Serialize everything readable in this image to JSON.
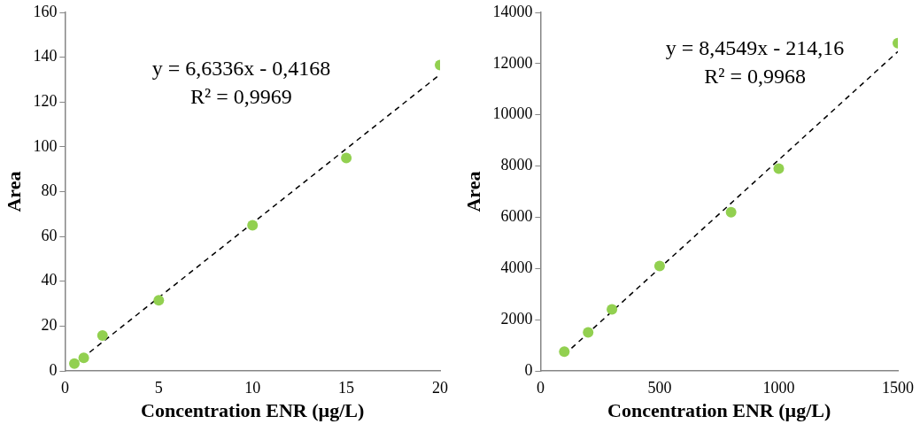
{
  "chart_data": [
    {
      "type": "scatter",
      "xlabel": "Concentration ENR (µg/L)",
      "ylabel": "Area",
      "xlim": [
        0,
        20
      ],
      "xticks": [
        0,
        5,
        10,
        15,
        20
      ],
      "ylim": [
        0,
        160
      ],
      "yticks": [
        0,
        20,
        40,
        60,
        80,
        100,
        120,
        140,
        160
      ],
      "grid": false,
      "legend": false,
      "marker": "circle",
      "annotations": [
        "y = 6,6336x - 0,4168",
        "R² = 0,9969"
      ],
      "series": [
        {
          "color": "#92d050",
          "x": [
            0.5,
            1,
            2,
            5,
            10,
            15,
            20
          ],
          "values": [
            3.3,
            5.8,
            15.8,
            31.5,
            65,
            95,
            136.5
          ]
        },
        {
          "type": "line",
          "color": "#000000",
          "line_style": "dashed",
          "marker": "none",
          "x": [
            0.5,
            20
          ],
          "values": [
            2.9,
            132.3
          ]
        }
      ]
    },
    {
      "type": "scatter",
      "xlabel": "Concentration ENR (µg/L)",
      "ylabel": "Area",
      "xlim": [
        0,
        1500
      ],
      "xticks": [
        0,
        500,
        1000,
        1500
      ],
      "ylim": [
        0,
        14000
      ],
      "yticks": [
        0,
        2000,
        4000,
        6000,
        8000,
        10000,
        12000,
        14000
      ],
      "grid": false,
      "legend": false,
      "marker": "circle",
      "annotations": [
        "y = 8,4549x - 214,16",
        "R² = 0,9968"
      ],
      "series": [
        {
          "color": "#92d050",
          "x": [
            100,
            200,
            300,
            500,
            800,
            1000,
            1500
          ],
          "values": [
            750,
            1500,
            2400,
            4100,
            6200,
            7900,
            12800
          ]
        },
        {
          "type": "line",
          "color": "#000000",
          "line_style": "dashed",
          "marker": "none",
          "x": [
            100,
            1500
          ],
          "values": [
            630,
            12470
          ]
        }
      ]
    }
  ]
}
